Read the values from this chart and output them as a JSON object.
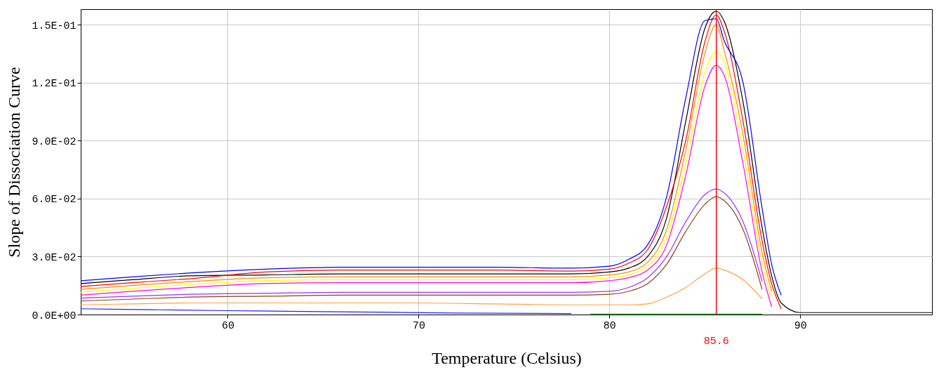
{
  "chart_data": {
    "type": "line",
    "xlabel": "Temperature (Celsius)",
    "ylabel": "Slope of Dissociation Curve",
    "x": [
      52.3,
      55,
      58,
      62,
      66,
      70,
      74,
      78,
      80,
      81,
      82,
      83,
      84,
      85,
      85.6,
      86,
      87,
      88,
      88.5,
      89,
      90,
      93,
      96.9
    ],
    "series": [
      {
        "color": "#000000",
        "values": [
          0.016,
          0.018,
          0.02,
          0.0205,
          0.021,
          0.021,
          0.021,
          0.021,
          0.022,
          0.024,
          0.03,
          0.05,
          0.1,
          0.148,
          0.157,
          0.152,
          0.11,
          0.045,
          0.02,
          0.006,
          0.001,
          0.001,
          0.001
        ]
      },
      {
        "color": "#ff0000",
        "values": [
          0.0145,
          0.0165,
          0.0185,
          0.022,
          0.023,
          0.023,
          0.023,
          0.0225,
          0.0235,
          0.0265,
          0.0335,
          0.056,
          0.09,
          0.141,
          0.155,
          0.147,
          0.1,
          0.038,
          0.016,
          0.003,
          null,
          null,
          null
        ]
      },
      {
        "color": "#0000ff",
        "values": [
          0.0175,
          0.0195,
          0.0215,
          0.0235,
          0.0245,
          0.0245,
          0.0245,
          0.024,
          0.025,
          0.0285,
          0.036,
          0.061,
          0.112,
          0.152,
          0.153,
          0.142,
          0.12,
          0.055,
          0.026,
          0.01,
          null,
          null,
          null
        ]
      },
      {
        "color": "#ff8c00",
        "values": [
          0.013,
          0.015,
          0.017,
          0.019,
          0.0195,
          0.0195,
          0.0195,
          0.0195,
          0.0205,
          0.022,
          0.027,
          0.044,
          0.085,
          0.135,
          0.15,
          0.137,
          0.093,
          0.032,
          0.012,
          null,
          null,
          null,
          null
        ]
      },
      {
        "color": "#ffff00",
        "values": [
          0.0115,
          0.0135,
          0.0155,
          0.0175,
          0.018,
          0.018,
          0.018,
          0.018,
          0.019,
          0.0205,
          0.025,
          0.04,
          0.078,
          0.125,
          0.136,
          0.131,
          0.085,
          0.027,
          0.008,
          null,
          null,
          null,
          null
        ]
      },
      {
        "color": "#ff00ff",
        "values": [
          0.01,
          0.012,
          0.014,
          0.016,
          0.0165,
          0.0165,
          0.0165,
          0.0165,
          0.0175,
          0.019,
          0.023,
          0.036,
          0.072,
          0.118,
          0.129,
          0.124,
          0.078,
          0.022,
          0.004,
          null,
          null,
          null,
          null
        ]
      },
      {
        "color": "#9933ff",
        "values": [
          0.0085,
          0.0095,
          0.0105,
          0.011,
          0.0115,
          0.0115,
          0.0115,
          0.0115,
          0.012,
          0.014,
          0.019,
          0.03,
          0.048,
          0.062,
          0.065,
          0.063,
          0.048,
          0.017,
          null,
          null,
          null,
          null,
          null
        ]
      },
      {
        "color": "#8b4513",
        "values": [
          0.007,
          0.008,
          0.009,
          0.0095,
          0.01,
          0.01,
          0.01,
          0.01,
          0.0105,
          0.012,
          0.016,
          0.026,
          0.043,
          0.057,
          0.061,
          0.059,
          0.044,
          0.013,
          null,
          null,
          null,
          null,
          null
        ]
      },
      {
        "color": "#ffa040",
        "values": [
          0.005,
          0.0055,
          0.006,
          0.006,
          0.006,
          0.006,
          0.0055,
          0.005,
          0.005,
          0.005,
          0.0055,
          0.009,
          0.014,
          0.021,
          0.024,
          0.023,
          0.018,
          0.008,
          null,
          null,
          null,
          null,
          null
        ]
      },
      {
        "color": "#2020ff",
        "x": [
          52.3,
          56,
          60,
          64,
          68,
          72,
          78
        ],
        "values": [
          0.003,
          0.0025,
          0.002,
          0.0016,
          0.0012,
          0.0008,
          0.0005
        ]
      },
      {
        "color": "#00c000",
        "x": [
          79,
          88
        ],
        "values": [
          0.0002,
          0.0002
        ]
      }
    ],
    "xlim": [
      52.3,
      96.9
    ],
    "xticks": [
      60,
      70,
      80,
      90
    ],
    "ylim": [
      0,
      0.158
    ],
    "yticks": [
      {
        "value": 0,
        "label": "0.0E+00"
      },
      {
        "value": 0.03,
        "label": "3.0E-02"
      },
      {
        "value": 0.06,
        "label": "6.0E-02"
      },
      {
        "value": 0.09,
        "label": "9.0E-02"
      },
      {
        "value": 0.12,
        "label": "1.2E-01"
      },
      {
        "value": 0.15,
        "label": "1.5E-01"
      }
    ],
    "ref_lines": [
      {
        "axis": "x",
        "value": 85.6,
        "label": "85.6",
        "color": "#ff0000"
      }
    ],
    "grid": true,
    "legend": false,
    "marker": "none",
    "line_style": "solid"
  }
}
